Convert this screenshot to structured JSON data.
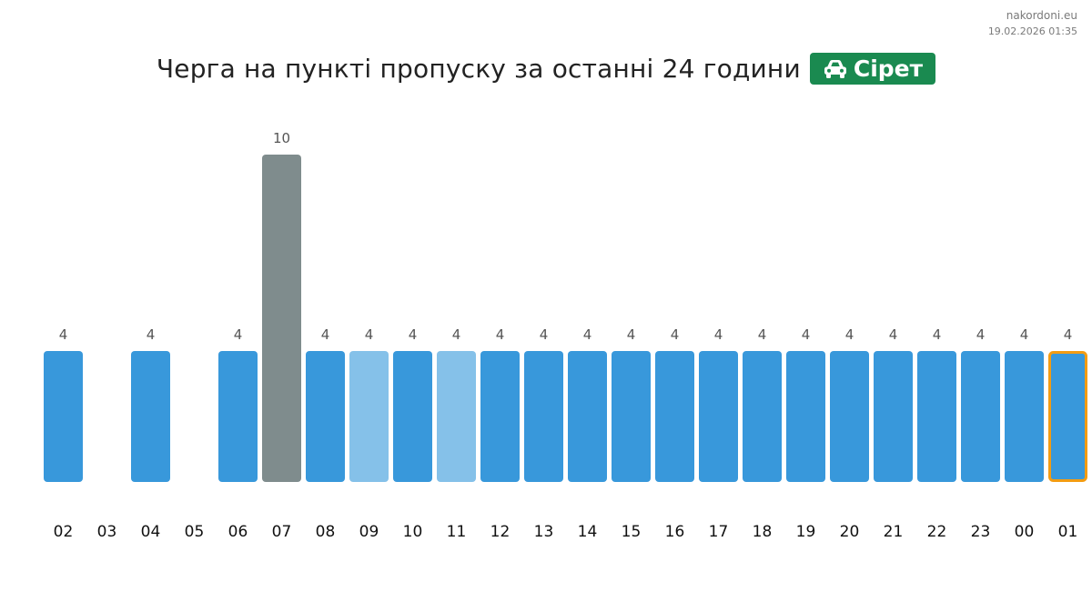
{
  "site": "nakordoni.eu",
  "timestamp": "19.02.2026 01:35",
  "title": "Черга на пункті пропуску за останні 24 години",
  "badge": {
    "label": "Сірет",
    "icon": "car-icon",
    "color": "#1a8a50"
  },
  "chart_data": {
    "type": "bar",
    "categories": [
      "02",
      "03",
      "04",
      "05",
      "06",
      "07",
      "08",
      "09",
      "10",
      "11",
      "12",
      "13",
      "14",
      "15",
      "16",
      "17",
      "18",
      "19",
      "20",
      "21",
      "22",
      "23",
      "00",
      "01"
    ],
    "values": [
      4,
      null,
      4,
      null,
      4,
      10,
      4,
      4,
      4,
      4,
      4,
      4,
      4,
      4,
      4,
      4,
      4,
      4,
      4,
      4,
      4,
      4,
      4,
      4
    ],
    "bar_colors": [
      "#3898db",
      "#3898db",
      "#3898db",
      "#3898db",
      "#3898db",
      "#7f8c8d",
      "#3898db",
      "#85c1e9",
      "#3898db",
      "#85c1e9",
      "#3898db",
      "#3898db",
      "#3898db",
      "#3898db",
      "#3898db",
      "#3898db",
      "#3898db",
      "#3898db",
      "#3898db",
      "#3898db",
      "#3898db",
      "#3898db",
      "#3898db",
      "#3898db"
    ],
    "highlighted_category": "01",
    "highlight_color": "#f39c12",
    "ylim": [
      0,
      10
    ],
    "grid": false,
    "xlabel": "",
    "ylabel": ""
  }
}
